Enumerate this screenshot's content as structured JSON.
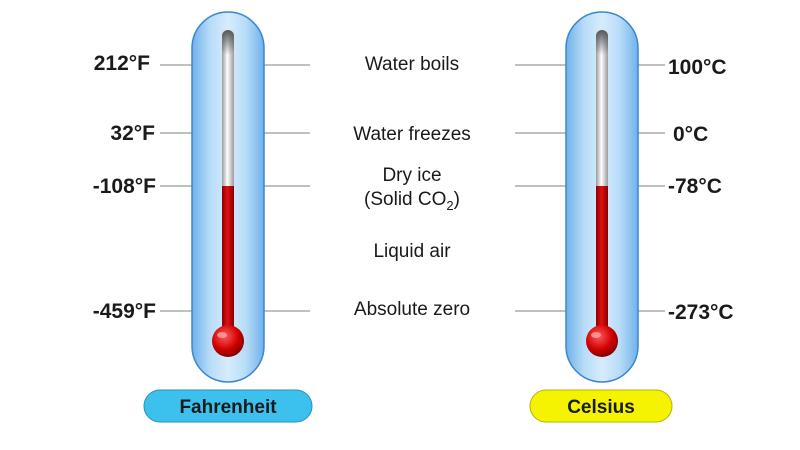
{
  "scales": {
    "fahrenheit": {
      "label": "Fahrenheit",
      "pill_color": "#3cc0ee"
    },
    "celsius": {
      "label": "Celsius",
      "pill_color": "#f5f300"
    }
  },
  "levels": [
    {
      "event": "Water boils",
      "fahrenheit": "212°F",
      "celsius": "100°C"
    },
    {
      "event": "Water freezes",
      "fahrenheit": "32°F",
      "celsius": "0°C"
    },
    {
      "event": "Dry ice",
      "event_line2": "(Solid CO",
      "event_sub": "2",
      "event_line2_end": ")",
      "fahrenheit": "-108°F",
      "celsius": "-78°C"
    },
    {
      "event": "Liquid air"
    },
    {
      "event": "Absolute zero",
      "fahrenheit": "-459°F",
      "celsius": "-273°C"
    }
  ],
  "mercury_level": "Dry ice",
  "colors": {
    "tube_glass": "#a9d3f5",
    "mercury": "#cc0000",
    "capillary": "#ededed"
  }
}
